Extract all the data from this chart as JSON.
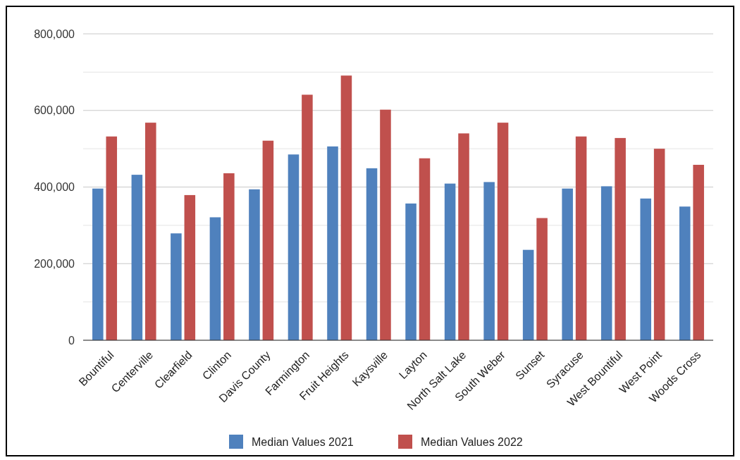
{
  "chart_data": {
    "type": "bar",
    "categories": [
      "Bountiful",
      "Centerville",
      "Clearfield",
      "Clinton",
      "Davis County",
      "Farmington",
      "Fruit Heights",
      "Kaysville",
      "Layton",
      "North Salt Lake",
      "South Weber",
      "Sunset",
      "Syracuse",
      "West Bountiful",
      "West Point",
      "Woods Cross"
    ],
    "series": [
      {
        "name": "Median Values 2021",
        "color": "#4f81bd",
        "values": [
          396000,
          432000,
          279000,
          321000,
          394000,
          485000,
          506000,
          449000,
          357000,
          409000,
          413000,
          236000,
          396000,
          402000,
          370000,
          349000
        ]
      },
      {
        "name": "Median Values 2022",
        "color": "#c0504d",
        "values": [
          532000,
          568000,
          379000,
          436000,
          521000,
          641000,
          691000,
          602000,
          475000,
          540000,
          568000,
          319000,
          532000,
          528000,
          500000,
          458000
        ]
      }
    ],
    "ylim": [
      0,
      800000
    ],
    "yticks": [
      0,
      {
        "value": 100000,
        "label": null
      },
      {
        "value": 200000,
        "label": "200,000"
      },
      {
        "value": 300000,
        "label": null
      },
      {
        "value": 400000,
        "label": "400,000"
      },
      {
        "value": 500000,
        "label": null
      },
      {
        "value": 600000,
        "label": "600,000"
      },
      {
        "value": 700000,
        "label": null
      },
      {
        "value": 800000,
        "label": "800,000"
      }
    ],
    "grid": "y",
    "legend": "bottom"
  }
}
